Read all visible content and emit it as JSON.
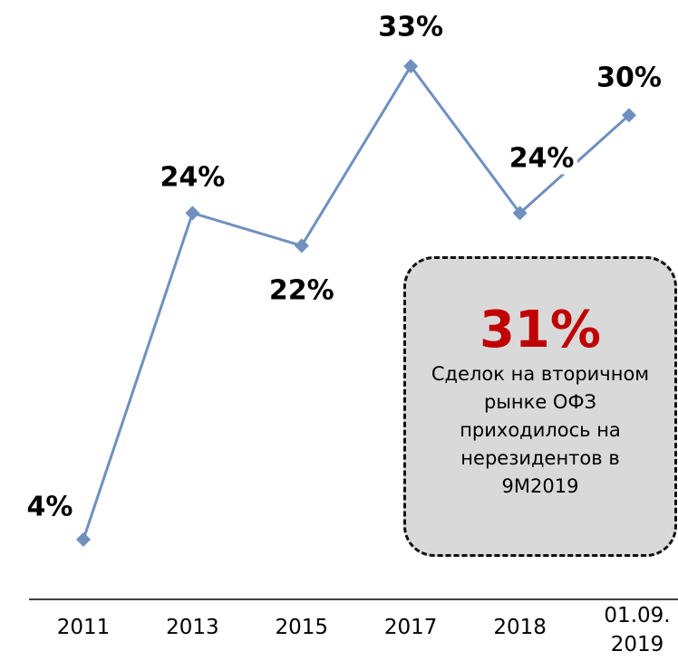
{
  "chart_data": {
    "type": "line",
    "categories": [
      "2011",
      "2013",
      "2015",
      "2017",
      "2018",
      "01.09. 2019"
    ],
    "values": [
      4,
      24,
      22,
      33,
      24,
      30
    ],
    "value_labels": [
      "4%",
      "24%",
      "22%",
      "33%",
      "24%",
      "30%"
    ],
    "color": "#7090be",
    "ylim": [
      0,
      37
    ],
    "annotation": {
      "headline": "31%",
      "text": "Сделок на вторичном рынке ОФЗ приходилось на нерезидентов в 9М2019"
    }
  }
}
